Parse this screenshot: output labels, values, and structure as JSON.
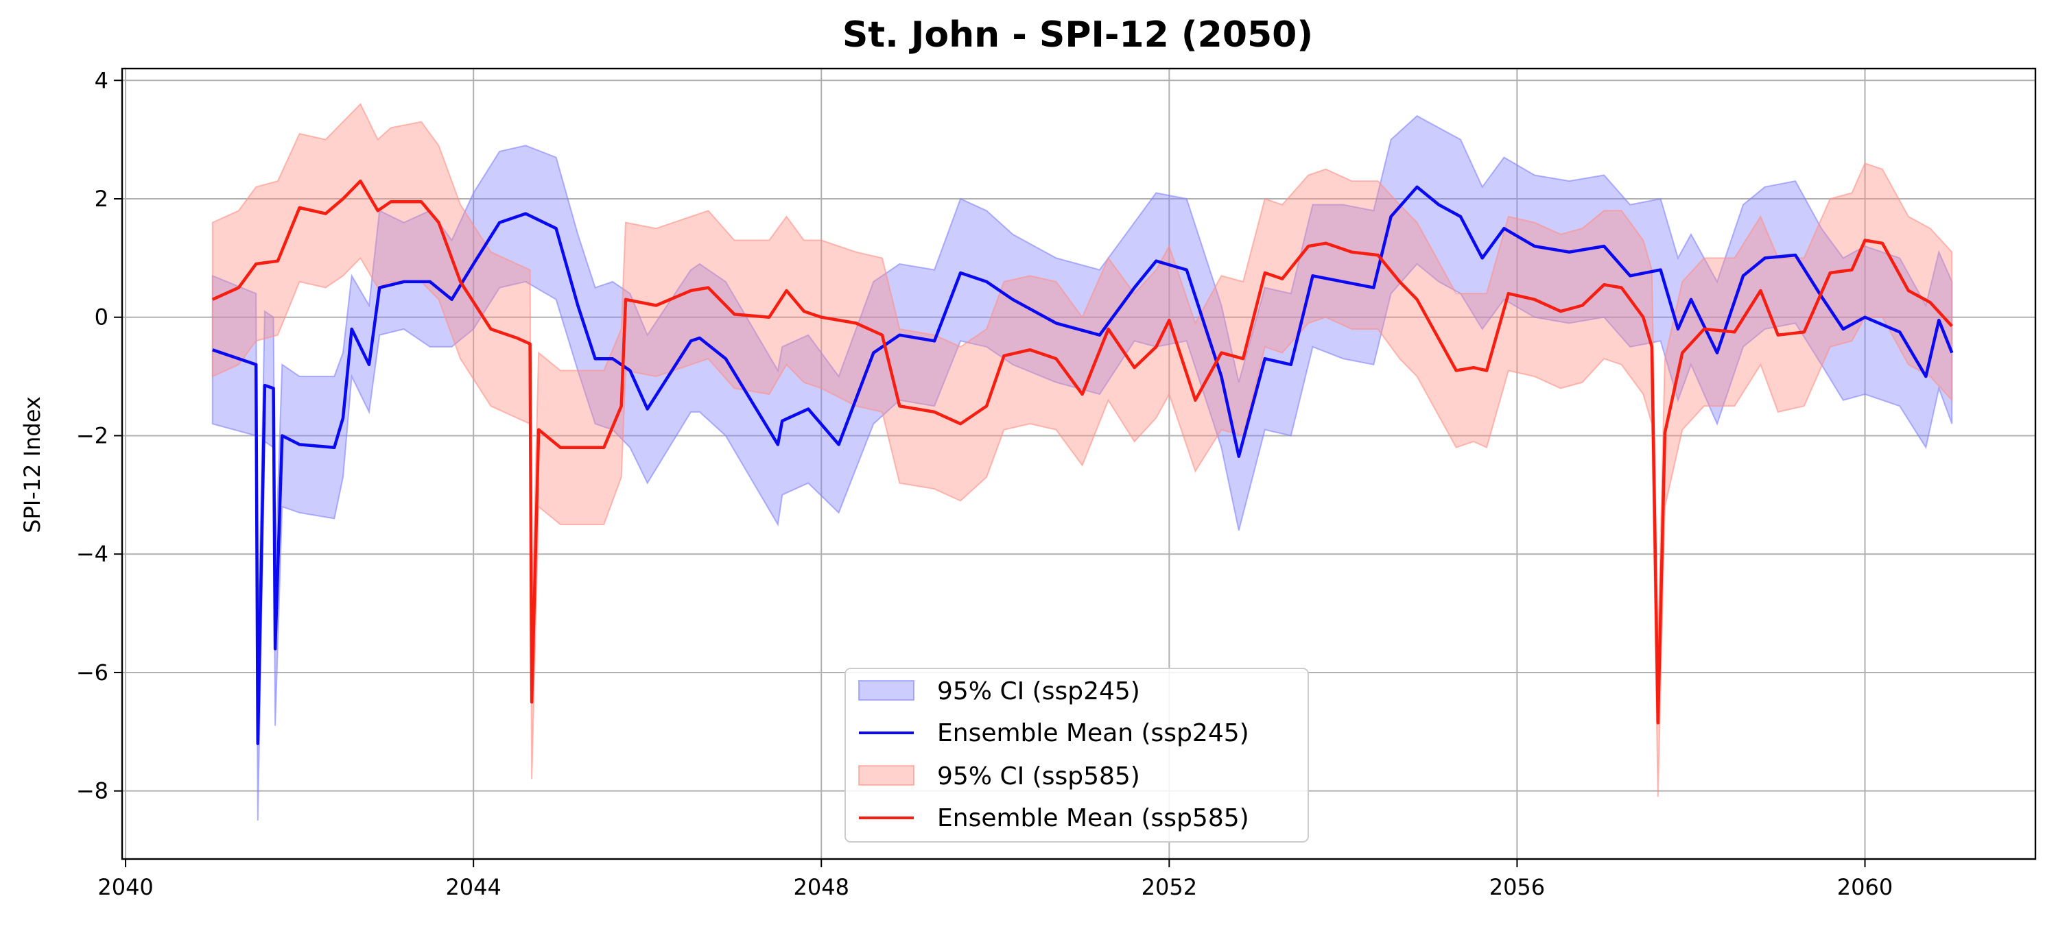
{
  "chart_data": {
    "type": "line",
    "title": "St. John - SPI-12 (2050)",
    "xlabel": "",
    "ylabel": "SPI-12 Index",
    "xlim": [
      2039.96,
      2061.96
    ],
    "ylim": [
      -9.15,
      4.2
    ],
    "x_ticks": [
      2040,
      2044,
      2048,
      2052,
      2056,
      2060
    ],
    "y_ticks": [
      4,
      2,
      0,
      -2,
      -4,
      -6,
      -8
    ],
    "y_tick_labels": [
      "4",
      "2",
      "0",
      "−2",
      "−4",
      "−6",
      "−8"
    ],
    "grid": true,
    "legend_position": "lower-center",
    "colors": {
      "ssp245_line": "#0a0af0",
      "ssp245_band": "#8080ff",
      "ssp585_line": "#f51e10",
      "ssp585_band": "#ff8f85"
    },
    "series": [
      {
        "name": "Ensemble Mean (ssp245)",
        "ci_name": "95% CI (ssp245)",
        "x": [
          2041.0,
          2041.5,
          2041.52,
          2041.6,
          2041.7,
          2041.72,
          2041.8,
          2042.0,
          2042.4,
          2042.5,
          2042.6,
          2042.8,
          2042.92,
          2043.2,
          2043.5,
          2043.75,
          2044.0,
          2044.3,
          2044.6,
          2044.95,
          2045.2,
          2045.4,
          2045.6,
          2045.8,
          2046.0,
          2046.5,
          2046.6,
          2046.9,
          2047.5,
          2047.55,
          2047.85,
          2048.2,
          2048.6,
          2048.9,
          2049.3,
          2049.6,
          2049.9,
          2050.2,
          2050.7,
          2051.2,
          2051.6,
          2051.85,
          2052.2,
          2052.6,
          2052.8,
          2053.1,
          2053.4,
          2053.65,
          2054.0,
          2054.35,
          2054.55,
          2054.85,
          2055.1,
          2055.35,
          2055.6,
          2055.85,
          2056.2,
          2056.6,
          2057.0,
          2057.3,
          2057.65,
          2057.85,
          2058.0,
          2058.3,
          2058.6,
          2058.85,
          2059.2,
          2059.5,
          2059.75,
          2060.0,
          2060.4,
          2060.7,
          2060.85,
          2061.0
        ],
        "values": [
          -0.55,
          -0.8,
          -7.2,
          -1.15,
          -1.2,
          -5.6,
          -2.0,
          -2.15,
          -2.2,
          -1.7,
          -0.2,
          -0.8,
          0.5,
          0.6,
          0.6,
          0.3,
          0.9,
          1.6,
          1.75,
          1.5,
          0.2,
          -0.7,
          -0.7,
          -0.9,
          -1.55,
          -0.4,
          -0.35,
          -0.7,
          -2.15,
          -1.75,
          -1.55,
          -2.15,
          -0.6,
          -0.3,
          -0.4,
          0.75,
          0.6,
          0.3,
          -0.1,
          -0.3,
          0.5,
          0.95,
          0.8,
          -1.0,
          -2.35,
          -0.7,
          -0.8,
          0.7,
          0.6,
          0.5,
          1.7,
          2.2,
          1.9,
          1.7,
          1.0,
          1.5,
          1.2,
          1.1,
          1.2,
          0.7,
          0.8,
          -0.2,
          0.3,
          -0.6,
          0.7,
          1.0,
          1.05,
          0.35,
          -0.2,
          0.0,
          -0.25,
          -1.0,
          -0.05,
          -0.6
        ],
        "lower": [
          -1.8,
          -2.0,
          -8.5,
          -2.1,
          -2.2,
          -6.9,
          -3.2,
          -3.3,
          -3.4,
          -2.7,
          -1.0,
          -1.6,
          -0.3,
          -0.2,
          -0.5,
          -0.5,
          -0.2,
          0.5,
          0.6,
          0.3,
          -0.9,
          -1.8,
          -1.9,
          -2.2,
          -2.8,
          -1.6,
          -1.6,
          -2.0,
          -3.5,
          -3.0,
          -2.8,
          -3.3,
          -1.8,
          -1.4,
          -1.5,
          -0.4,
          -0.5,
          -0.8,
          -1.1,
          -1.3,
          -0.4,
          -0.5,
          -0.4,
          -2.2,
          -3.6,
          -1.9,
          -2.0,
          -0.5,
          -0.7,
          -0.8,
          0.4,
          0.9,
          0.6,
          0.4,
          -0.2,
          0.3,
          0.0,
          -0.1,
          0.0,
          -0.5,
          -0.4,
          -1.4,
          -0.8,
          -1.8,
          -0.5,
          -0.2,
          -0.1,
          -0.8,
          -1.4,
          -1.3,
          -1.5,
          -2.2,
          -1.2,
          -1.8
        ],
        "upper": [
          0.7,
          0.4,
          -5.9,
          0.1,
          0.0,
          -4.3,
          -0.8,
          -1.0,
          -1.0,
          -0.6,
          0.7,
          0.2,
          1.8,
          1.6,
          1.8,
          1.3,
          2.1,
          2.8,
          2.9,
          2.7,
          1.4,
          0.5,
          0.6,
          0.4,
          -0.3,
          0.8,
          0.9,
          0.6,
          -0.9,
          -0.5,
          -0.3,
          -1.0,
          0.6,
          0.9,
          0.8,
          2.0,
          1.8,
          1.4,
          1.0,
          0.8,
          1.6,
          2.1,
          2.0,
          0.2,
          -1.1,
          0.5,
          0.4,
          1.9,
          1.9,
          1.8,
          3.0,
          3.4,
          3.2,
          3.0,
          2.2,
          2.7,
          2.4,
          2.3,
          2.4,
          1.9,
          2.0,
          1.0,
          1.4,
          0.6,
          1.9,
          2.2,
          2.3,
          1.5,
          1.0,
          1.2,
          1.0,
          0.2,
          1.1,
          0.6
        ]
      },
      {
        "name": "Ensemble Mean (ssp585)",
        "ci_name": "95% CI (ssp585)",
        "x": [
          2041.0,
          2041.3,
          2041.5,
          2041.75,
          2042.0,
          2042.3,
          2042.5,
          2042.7,
          2042.9,
          2043.05,
          2043.4,
          2043.6,
          2043.85,
          2044.2,
          2044.5,
          2044.65,
          2044.67,
          2044.75,
          2045.0,
          2045.5,
          2045.7,
          2045.75,
          2046.1,
          2046.5,
          2046.7,
          2047.0,
          2047.4,
          2047.6,
          2047.8,
          2048.0,
          2048.4,
          2048.7,
          2048.9,
          2049.3,
          2049.6,
          2049.9,
          2050.1,
          2050.4,
          2050.7,
          2051.0,
          2051.3,
          2051.6,
          2051.85,
          2052.0,
          2052.3,
          2052.6,
          2052.85,
          2053.1,
          2053.3,
          2053.6,
          2053.8,
          2054.1,
          2054.4,
          2054.65,
          2054.85,
          2055.3,
          2055.5,
          2055.65,
          2055.9,
          2056.2,
          2056.5,
          2056.75,
          2057.0,
          2057.2,
          2057.45,
          2057.55,
          2057.62,
          2057.7,
          2057.9,
          2058.15,
          2058.5,
          2058.8,
          2059.0,
          2059.3,
          2059.6,
          2059.85,
          2060.0,
          2060.2,
          2060.5,
          2060.75,
          2061.0
        ],
        "values": [
          0.3,
          0.5,
          0.9,
          0.95,
          1.85,
          1.75,
          2.0,
          2.3,
          1.8,
          1.95,
          1.95,
          1.6,
          0.6,
          -0.2,
          -0.35,
          -0.45,
          -6.5,
          -1.9,
          -2.2,
          -2.2,
          -1.5,
          0.3,
          0.2,
          0.45,
          0.5,
          0.05,
          0.0,
          0.45,
          0.1,
          0.0,
          -0.1,
          -0.3,
          -1.5,
          -1.6,
          -1.8,
          -1.5,
          -0.65,
          -0.55,
          -0.7,
          -1.3,
          -0.2,
          -0.85,
          -0.5,
          -0.05,
          -1.4,
          -0.6,
          -0.7,
          0.75,
          0.65,
          1.2,
          1.25,
          1.1,
          1.05,
          0.6,
          0.3,
          -0.9,
          -0.85,
          -0.9,
          0.4,
          0.3,
          0.1,
          0.2,
          0.55,
          0.5,
          0.0,
          -0.5,
          -6.85,
          -1.95,
          -0.6,
          -0.2,
          -0.25,
          0.45,
          -0.3,
          -0.25,
          0.75,
          0.8,
          1.3,
          1.25,
          0.45,
          0.25,
          -0.15
        ],
        "lower": [
          -1.0,
          -0.8,
          -0.4,
          -0.3,
          0.6,
          0.5,
          0.7,
          1.0,
          0.5,
          0.6,
          0.6,
          0.3,
          -0.7,
          -1.5,
          -1.7,
          -1.8,
          -7.8,
          -3.2,
          -3.5,
          -3.5,
          -2.7,
          -0.9,
          -1.0,
          -0.8,
          -0.7,
          -1.2,
          -1.3,
          -0.8,
          -1.1,
          -1.2,
          -1.5,
          -1.6,
          -2.8,
          -2.9,
          -3.1,
          -2.7,
          -1.9,
          -1.8,
          -1.9,
          -2.5,
          -1.4,
          -2.1,
          -1.7,
          -1.3,
          -2.6,
          -1.9,
          -2.0,
          -0.5,
          -0.6,
          -0.1,
          0.0,
          -0.2,
          -0.2,
          -0.7,
          -1.0,
          -2.2,
          -2.1,
          -2.2,
          -0.9,
          -1.0,
          -1.2,
          -1.1,
          -0.7,
          -0.8,
          -1.3,
          -1.8,
          -8.1,
          -3.2,
          -1.9,
          -1.5,
          -1.5,
          -0.8,
          -1.6,
          -1.5,
          -0.5,
          -0.4,
          0.0,
          0.0,
          -0.8,
          -1.0,
          -1.4
        ],
        "upper": [
          1.6,
          1.8,
          2.2,
          2.3,
          3.1,
          3.0,
          3.3,
          3.6,
          3.0,
          3.2,
          3.3,
          2.9,
          1.9,
          1.1,
          0.9,
          0.8,
          -5.2,
          -0.6,
          -0.9,
          -0.9,
          -0.2,
          1.6,
          1.5,
          1.7,
          1.8,
          1.3,
          1.3,
          1.7,
          1.3,
          1.3,
          1.1,
          1.0,
          -0.2,
          -0.3,
          -0.5,
          -0.2,
          0.6,
          0.7,
          0.6,
          0.0,
          1.0,
          0.4,
          0.8,
          1.2,
          -0.1,
          0.7,
          0.6,
          2.0,
          1.9,
          2.4,
          2.5,
          2.3,
          2.3,
          1.9,
          1.6,
          0.4,
          0.4,
          0.4,
          1.7,
          1.6,
          1.4,
          1.5,
          1.8,
          1.8,
          1.3,
          0.8,
          -5.6,
          -0.7,
          0.6,
          1.0,
          1.0,
          1.7,
          1.0,
          1.0,
          2.0,
          2.1,
          2.6,
          2.5,
          1.7,
          1.5,
          1.1
        ]
      }
    ]
  }
}
